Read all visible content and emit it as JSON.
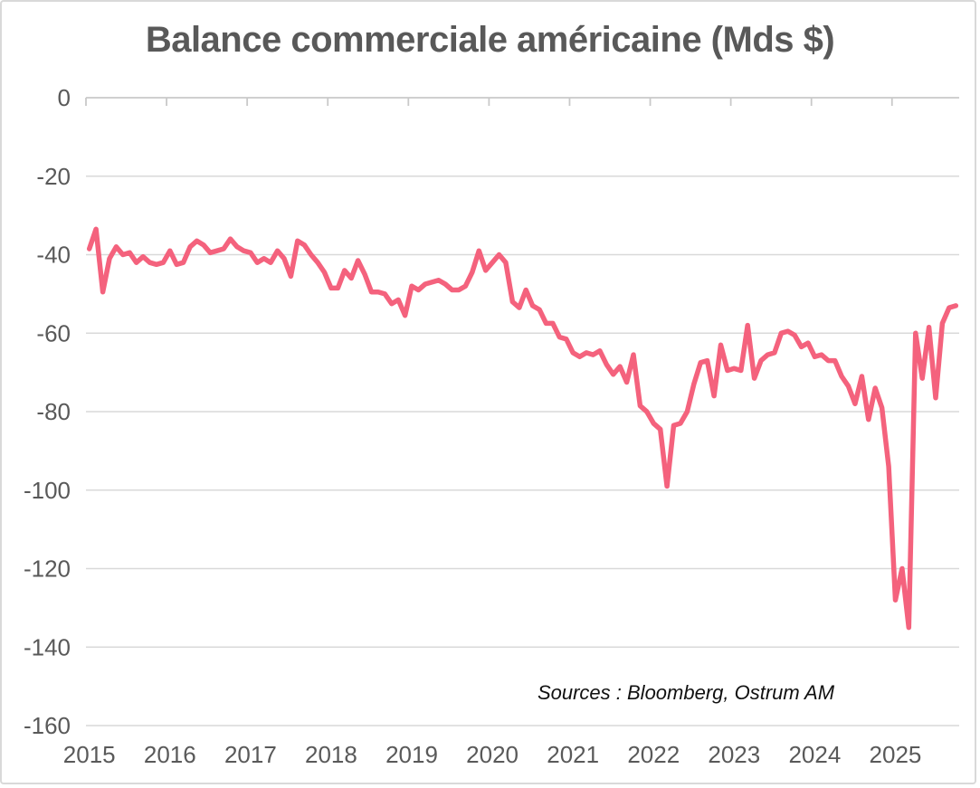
{
  "source_note": "Sources : Bloomberg, Ostrum AM",
  "chart_data": {
    "type": "line",
    "title": "Balance commerciale américaine (Mds $)",
    "xlabel": "",
    "ylabel": "",
    "ylim": [
      -160,
      0
    ],
    "grid": true,
    "legend": "none",
    "y_tick_labels": [
      "0",
      "-20",
      "-40",
      "-60",
      "-80",
      "-100",
      "-120",
      "-140",
      "-160"
    ],
    "y_tick_values": [
      0,
      -20,
      -40,
      -60,
      -80,
      -100,
      -120,
      -140,
      -160
    ],
    "x_tick_labels": [
      "2015",
      "2016",
      "2017",
      "2018",
      "2019",
      "2020",
      "2021",
      "2022",
      "2023",
      "2024",
      "2025"
    ],
    "x_start": "2015-01",
    "frequency": "monthly",
    "series": [
      {
        "name": "Balance commerciale américaine (Mds $)",
        "color": "#F4627D",
        "values": [
          -38.5,
          -33.5,
          -49.5,
          -41,
          -38,
          -40,
          -39.5,
          -42,
          -40.5,
          -42,
          -42.5,
          -42,
          -39,
          -42.5,
          -42,
          -38,
          -36.5,
          -37.5,
          -39.5,
          -39,
          -38.5,
          -36,
          -38,
          -39,
          -39.5,
          -42,
          -41,
          -42,
          -39,
          -41,
          -45.5,
          -36.5,
          -37.5,
          -40,
          -42,
          -44.5,
          -48.5,
          -48.5,
          -44,
          -46,
          -41.5,
          -45,
          -49.5,
          -49.5,
          -50,
          -52.5,
          -51.5,
          -55.5,
          -48,
          -49,
          -47.5,
          -47,
          -46.5,
          -47.5,
          -49,
          -49,
          -48,
          -44.5,
          -39,
          -44,
          -42,
          -40,
          -42,
          -52,
          -53.5,
          -49,
          -53,
          -54,
          -57.5,
          -57.5,
          -61,
          -61.5,
          -65,
          -66,
          -65,
          -65.5,
          -64.5,
          -68,
          -70.5,
          -68.5,
          -72.5,
          -65.5,
          -78.5,
          -80,
          -83,
          -84.5,
          -99,
          -83.5,
          -83,
          -80,
          -73,
          -67.5,
          -67,
          -76,
          -63,
          -69.5,
          -69,
          -69.5,
          -58,
          -71.5,
          -67,
          -65.5,
          -65,
          -60,
          -59.5,
          -60.5,
          -63.5,
          -62.5,
          -66,
          -65.5,
          -67,
          -67,
          -71,
          -73.5,
          -78,
          -71,
          -82,
          -74,
          -79,
          -94,
          -128,
          -120,
          -135,
          -60,
          -71.5,
          -58.5,
          -76.5,
          -57.5,
          -53.5,
          -53
        ]
      }
    ]
  },
  "colors": {
    "line": "#F4627D",
    "title_text": "#595959",
    "axis_text": "#595959",
    "gridline": "#D9D9D9",
    "axis_line": "#C9C9C9",
    "source_text": "#111111",
    "frame_border": "#D9D9D9",
    "background": "#FFFFFF"
  }
}
